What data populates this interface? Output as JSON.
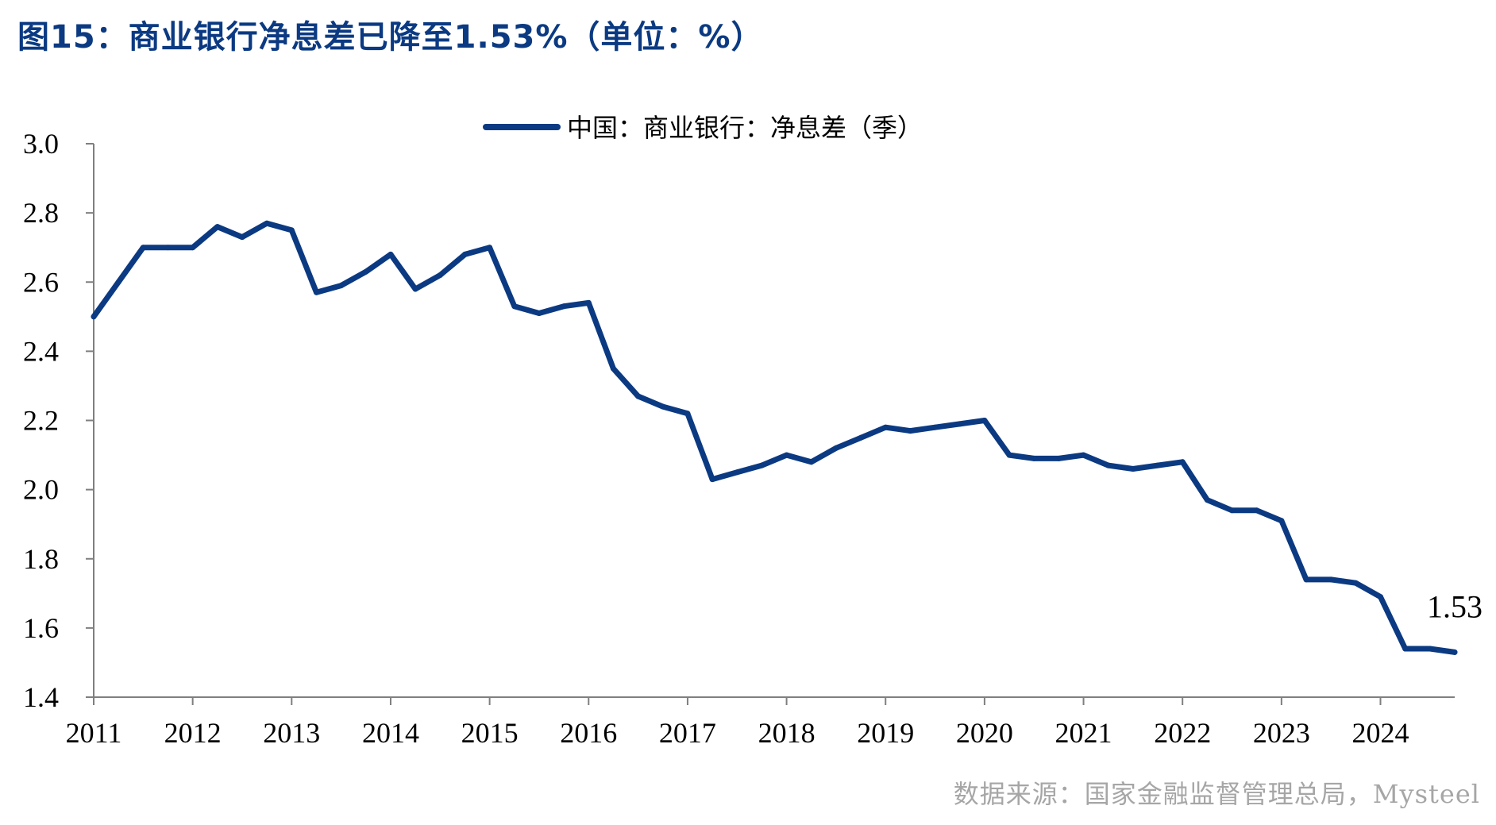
{
  "figure": {
    "title": "图15：商业银行净息差已降至1.53%（单位：%）",
    "source": "数据来源：国家金融监督管理总局，Mysteel"
  },
  "chart_data": {
    "type": "line",
    "title": "图15：商业银行净息差已降至1.53%（单位：%）",
    "xlabel": "",
    "ylabel": "",
    "ylim": [
      1.4,
      3.0
    ],
    "yticks": [
      "1.4",
      "1.6",
      "1.8",
      "2.0",
      "2.2",
      "2.4",
      "2.6",
      "2.8",
      "3.0"
    ],
    "xticks": [
      "2011",
      "2012",
      "2013",
      "2014",
      "2015",
      "2016",
      "2017",
      "2018",
      "2019",
      "2020",
      "2021",
      "2022",
      "2023",
      "2024"
    ],
    "grid": false,
    "legend_position": "top-center",
    "color": "#0b3a82",
    "series": [
      {
        "name": "中国：商业银行：净息差（季）",
        "x": [
          "2011-Q1",
          "2011-Q2",
          "2011-Q3",
          "2011-Q4",
          "2012-Q1",
          "2012-Q2",
          "2012-Q3",
          "2012-Q4",
          "2013-Q1",
          "2013-Q2",
          "2013-Q3",
          "2013-Q4",
          "2014-Q1",
          "2014-Q2",
          "2014-Q3",
          "2014-Q4",
          "2015-Q1",
          "2015-Q2",
          "2015-Q3",
          "2015-Q4",
          "2016-Q1",
          "2016-Q2",
          "2016-Q3",
          "2016-Q4",
          "2017-Q1",
          "2017-Q2",
          "2017-Q3",
          "2017-Q4",
          "2018-Q1",
          "2018-Q2",
          "2018-Q3",
          "2018-Q4",
          "2019-Q1",
          "2019-Q2",
          "2019-Q3",
          "2019-Q4",
          "2020-Q1",
          "2020-Q2",
          "2020-Q3",
          "2020-Q4",
          "2021-Q1",
          "2021-Q2",
          "2021-Q3",
          "2021-Q4",
          "2022-Q1",
          "2022-Q2",
          "2022-Q3",
          "2022-Q4",
          "2023-Q1",
          "2023-Q2",
          "2023-Q3",
          "2023-Q4",
          "2024-Q1",
          "2024-Q2",
          "2024-Q3",
          "2024-Q4"
        ],
        "values": [
          2.5,
          2.6,
          2.7,
          2.7,
          2.7,
          2.76,
          2.73,
          2.77,
          2.75,
          2.57,
          2.59,
          2.63,
          2.68,
          2.58,
          2.62,
          2.68,
          2.7,
          2.53,
          2.51,
          2.53,
          2.54,
          2.35,
          2.27,
          2.24,
          2.22,
          2.03,
          2.05,
          2.07,
          2.1,
          2.08,
          2.12,
          2.15,
          2.18,
          2.17,
          2.18,
          2.19,
          2.2,
          2.1,
          2.09,
          2.09,
          2.1,
          2.07,
          2.06,
          2.07,
          2.08,
          1.97,
          1.94,
          1.94,
          1.91,
          1.74,
          1.74,
          1.73,
          1.69,
          1.54,
          1.54,
          1.53
        ]
      }
    ],
    "annotations": [
      {
        "label": "1.53",
        "x": "2024-Q4",
        "y": 1.53
      }
    ]
  }
}
